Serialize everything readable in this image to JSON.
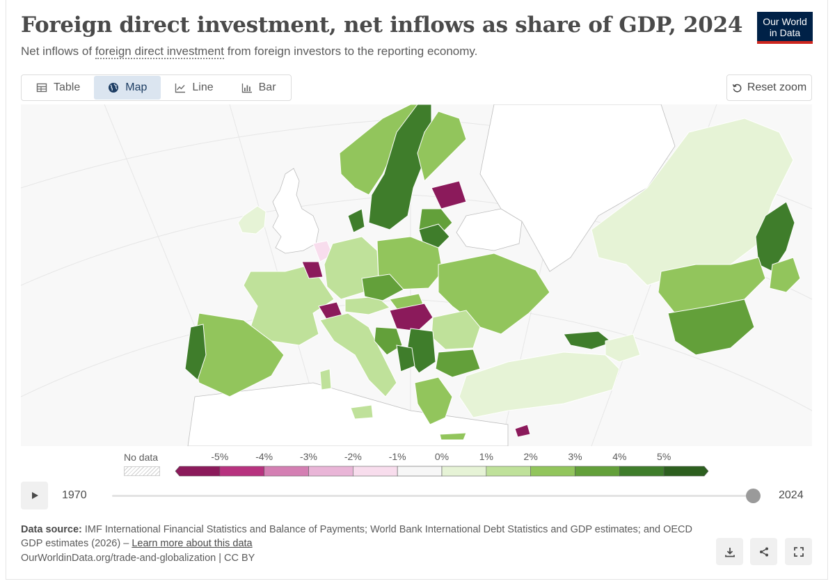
{
  "header": {
    "title": "Foreign direct investment, net inflows as share of GDP, 2024",
    "subtitle_prefix": "Net inflows of ",
    "subtitle_link": "foreign direct investment",
    "subtitle_suffix": " from foreign investors to the reporting economy.",
    "logo_line1": "Our World",
    "logo_line2": "in Data"
  },
  "tabs": [
    {
      "label": "Table",
      "icon": "table-icon",
      "active": false
    },
    {
      "label": "Map",
      "icon": "globe-icon",
      "active": true
    },
    {
      "label": "Line",
      "icon": "line-chart-icon",
      "active": false
    },
    {
      "label": "Bar",
      "icon": "bar-chart-icon",
      "active": false
    }
  ],
  "reset_zoom_label": "Reset zoom",
  "legend": {
    "no_data_label": "No data",
    "ticks": [
      "-5%",
      "-4%",
      "-3%",
      "-2%",
      "-1%",
      "0%",
      "1%",
      "2%",
      "3%",
      "4%",
      "5%"
    ],
    "colors": [
      "#8b1a5b",
      "#b7327f",
      "#d47fb3",
      "#e9b5d7",
      "#f8dded",
      "#f7f7f7",
      "#e6f3d6",
      "#bfe19a",
      "#92c55c",
      "#63a03a",
      "#3f7d2b",
      "#2d5f1f"
    ]
  },
  "timeline": {
    "start_year": "1970",
    "end_year": "2024",
    "selected_year": "2024"
  },
  "footer": {
    "source_label": "Data source:",
    "source_text": " IMF International Financial Statistics and Balance of Payments; World Bank International Debt Statistics and GDP estimates; and OECD GDP estimates (2026) – ",
    "learn_more": "Learn more about this data",
    "url": "OurWorldinData.org/trade-and-globalization | CC BY"
  },
  "colors": {
    "active_tab": "#dbe5f0",
    "logo_bg": "#002147",
    "logo_accent": "#ce261e"
  }
}
